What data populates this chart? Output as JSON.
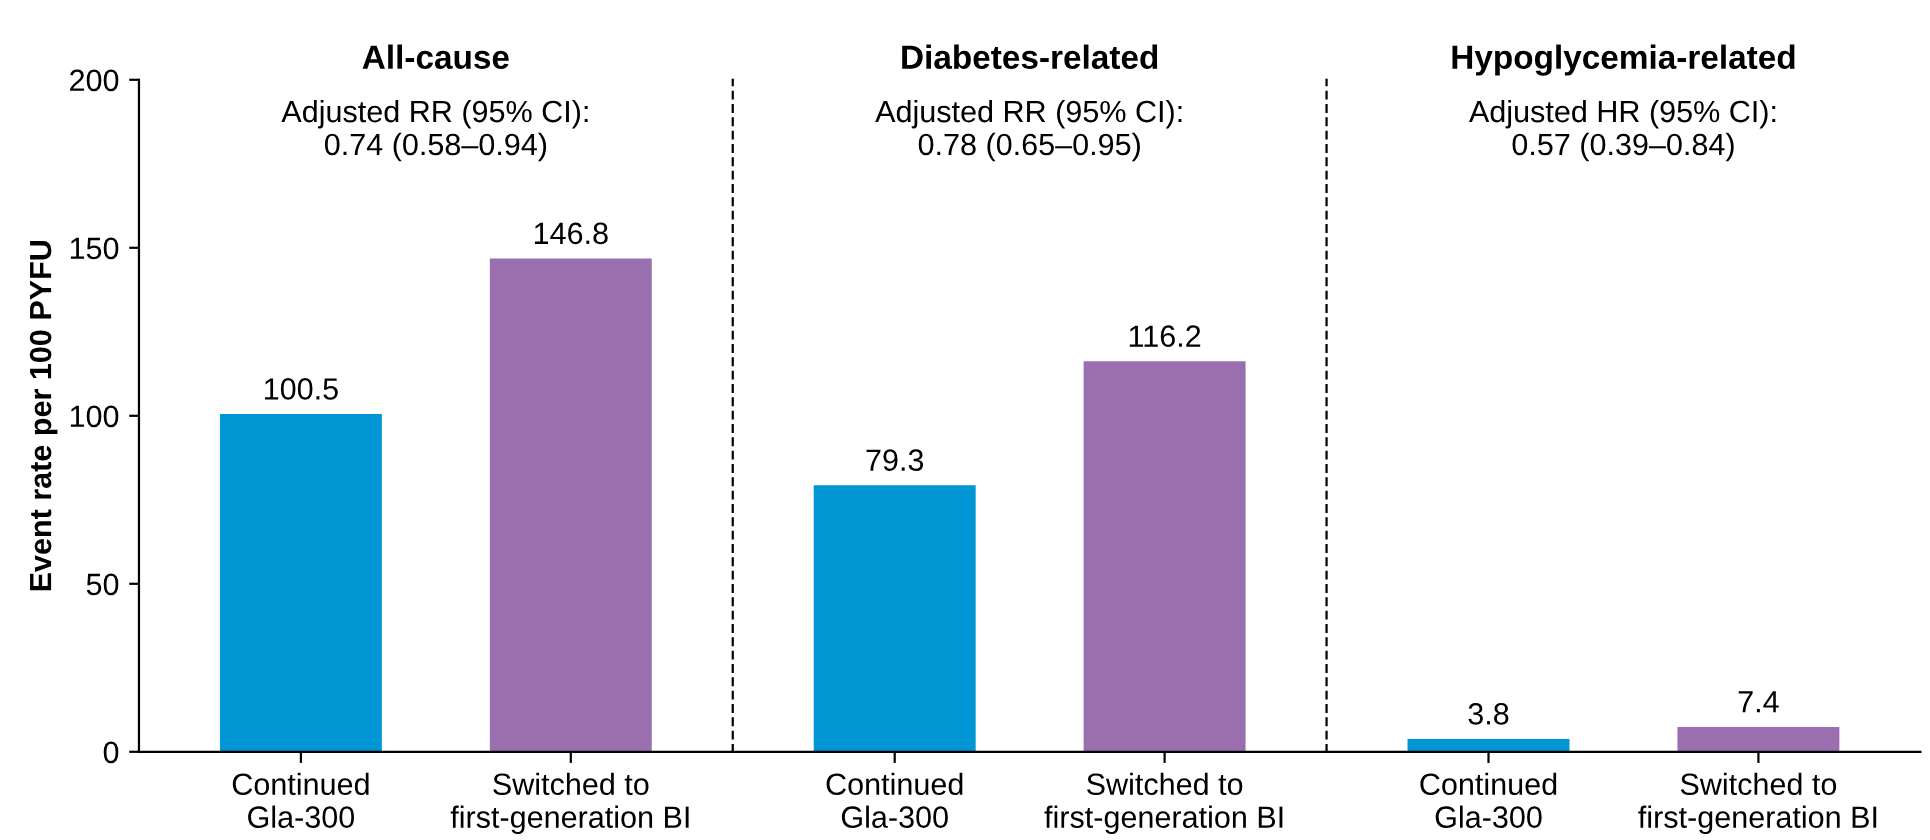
{
  "chart_data": [
    {
      "type": "bar",
      "title": "All-cause",
      "ylabel": "Event rate per 100 PYFU",
      "categories": [
        "Continued\nGla-300",
        "Switched to\nfirst-generation BI"
      ],
      "values": [
        100.5,
        146.8
      ],
      "colors": [
        "#0095d5",
        "#9a6faf"
      ],
      "data_labels": true,
      "ylim": [
        0,
        200
      ],
      "yticks": [
        0,
        50,
        100,
        150,
        200
      ],
      "annotations": [
        "Adjusted RR (95% CI):\n0.74 (0.58–0.94)"
      ]
    },
    {
      "type": "bar",
      "title": "Diabetes-related",
      "categories": [
        "Continued\nGla-300",
        "Switched to\nfirst-generation BI"
      ],
      "values": [
        79.3,
        116.2
      ],
      "colors": [
        "#0095d5",
        "#9a6faf"
      ],
      "data_labels": true,
      "ylim": [
        0,
        200
      ],
      "tick_labels": "x",
      "annotations": [
        "Adjusted RR (95% CI):\n0.78 (0.65–0.95)"
      ]
    },
    {
      "type": "bar",
      "title": "Hypoglycemia-related",
      "categories": [
        "Continued\nGla-300",
        "Switched to\nfirst-generation BI"
      ],
      "values": [
        3.8,
        7.4
      ],
      "colors": [
        "#0095d5",
        "#9a6faf"
      ],
      "data_labels": true,
      "ylim": [
        0,
        200
      ],
      "tick_labels": "x",
      "annotations": [
        "Adjusted HR (95% CI):\n0.57 (0.39–0.84)"
      ]
    }
  ]
}
